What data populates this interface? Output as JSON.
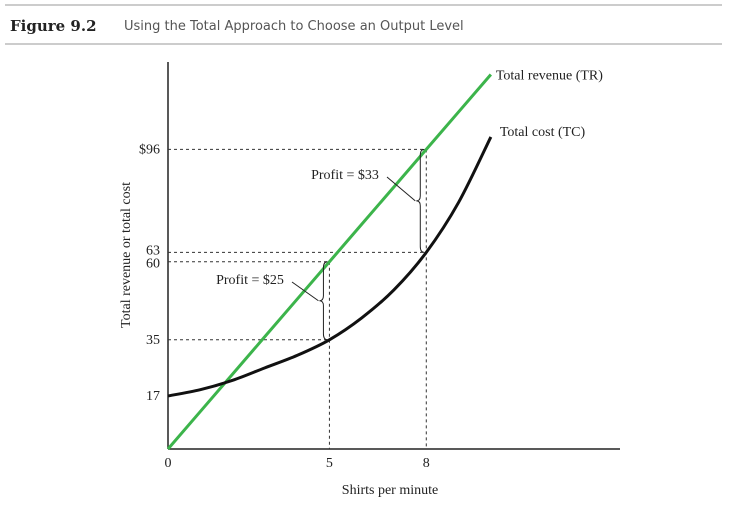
{
  "header": {
    "figure": "Figure 9.2",
    "title": "Using the Total Approach to Choose an Output Level"
  },
  "chart_data": {
    "type": "line",
    "xlabel": "Shirts per minute",
    "ylabel": "Total revenue or total cost",
    "x": [
      0,
      1,
      2,
      3,
      4,
      5,
      6,
      7,
      8,
      9,
      10
    ],
    "series": [
      {
        "name": "Total revenue (TR)",
        "color": "#3cb44b",
        "values": [
          0,
          12,
          24,
          36,
          48,
          60,
          72,
          84,
          96,
          108,
          120
        ]
      },
      {
        "name": "Total cost (TC)",
        "color": "#111111",
        "values": [
          17,
          19,
          22,
          26,
          30,
          35,
          42,
          51,
          63,
          79,
          100
        ]
      }
    ],
    "xlim": [
      0,
      14
    ],
    "ylim": [
      0,
      124
    ],
    "xticks": [
      0,
      5,
      8
    ],
    "yticks": [
      17,
      35,
      60,
      63,
      {
        "value": 96,
        "label": "$96"
      }
    ],
    "annotations": [
      "Profit = $25",
      "Profit = $33"
    ]
  }
}
